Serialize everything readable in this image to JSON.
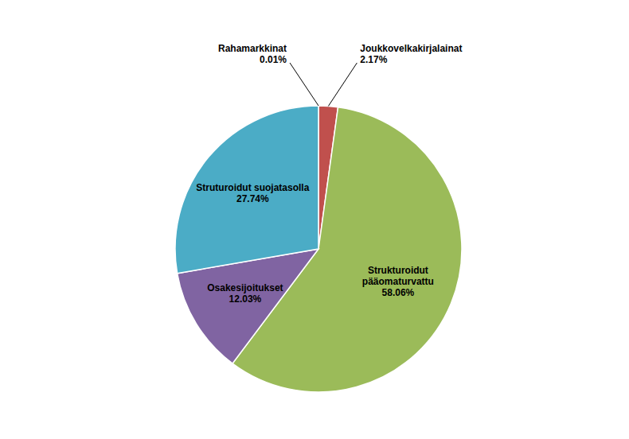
{
  "chart_data": {
    "type": "pie",
    "categories": [
      "Rahamarkkinat",
      "Joukkovelkakirjalainat",
      "Strukturoidut\npääomaturvattu",
      "Osakesijoitukset",
      "Struturoidut suojatasolla"
    ],
    "values": [
      0.01,
      2.17,
      58.06,
      12.03,
      27.74
    ],
    "value_labels": [
      "0.01%",
      "2.17%",
      "58.06%",
      "12.03%",
      "27.74%"
    ],
    "colors": [
      "#C0504D",
      "#C0504D",
      "#9BBB59",
      "#8064A2",
      "#4BACC6"
    ],
    "data_labels": true
  }
}
